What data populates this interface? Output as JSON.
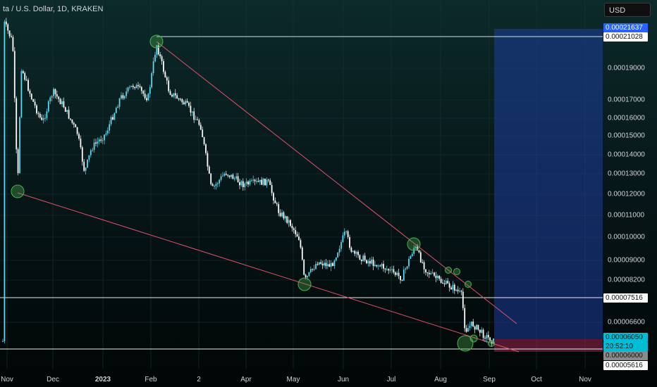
{
  "header": {
    "title": "ta / U.S. Dollar, 1D, KRAKEN",
    "currency_button": "USD"
  },
  "time_axis": {
    "labels": [
      "Nov",
      "Dec",
      "2023",
      "Feb",
      "2",
      "Apr",
      "May",
      "Jun",
      "Jul",
      "Aug",
      "Sep",
      "Oct",
      "Nov"
    ]
  },
  "price_axis": {
    "labels": [
      "0.00019000",
      "0.00017000",
      "0.00016000",
      "0.00015000",
      "0.00014000",
      "0.00013000",
      "0.00012000",
      "0.00011000",
      "0.00010000",
      "0.00009000",
      "0.00008200",
      "0.00006600"
    ]
  },
  "price_markers": {
    "target_high": "0.00021637",
    "resistance_high": "0.00021028",
    "resistance_mid": "0.00007516",
    "current_price": "0.00006050",
    "countdown": "20:52:10",
    "crosshair": "0.00006000",
    "stop_loss": "0.00005616"
  },
  "colors": {
    "candle_up": "#5fd8ee",
    "candle_down": "#ffffff",
    "trendline": "#e0526a",
    "pivot_circle": "#4caf50",
    "target_zone": "#1e3fa8",
    "stop_zone": "#9a2550",
    "current_price_bg": "#00bcd4",
    "target_bg": "#2962ff"
  }
}
